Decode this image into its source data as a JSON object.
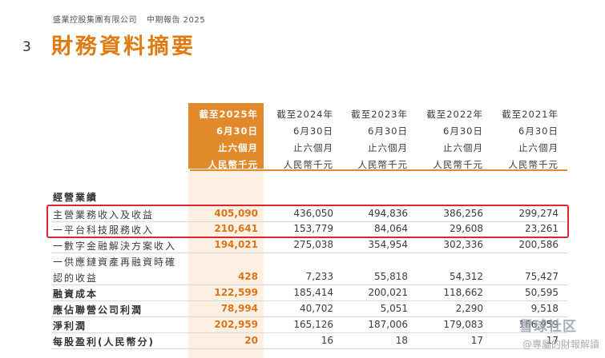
{
  "breadcrumb": {
    "company": "盛業控股集團有限公司",
    "report": "中期報告 2025"
  },
  "page_number": "3",
  "title": "財務資料摘要",
  "columns": [
    {
      "lines": [
        "截至2025年",
        "6月30日",
        "止六個月",
        "人民幣千元"
      ]
    },
    {
      "lines": [
        "截至2024年",
        "6月30日",
        "止六個月",
        "人民幣千元"
      ]
    },
    {
      "lines": [
        "截至2023年",
        "6月30日",
        "止六個月",
        "人民幣千元"
      ]
    },
    {
      "lines": [
        "截至2022年",
        "6月30日",
        "止六個月",
        "人民幣千元"
      ]
    },
    {
      "lines": [
        "截至2021年",
        "6月30日",
        "止六個月",
        "人民幣千元"
      ]
    }
  ],
  "section_title": "經營業績",
  "rows": [
    {
      "label": "主營業務收入及收益",
      "values": [
        "405,090",
        "436,050",
        "494,836",
        "386,256",
        "299,274"
      ]
    },
    {
      "label": "一平台科技服務收入",
      "values": [
        "210,641",
        "153,779",
        "84,064",
        "29,608",
        "23,261"
      ]
    },
    {
      "label": "一數字金融解決方案收入",
      "values": [
        "194,021",
        "275,038",
        "354,954",
        "302,336",
        "200,586"
      ]
    },
    {
      "label": "一供應鏈資產再融資時確",
      "values": [
        "",
        "",
        "",
        "",
        ""
      ]
    },
    {
      "label": "認的收益",
      "values": [
        "428",
        "7,233",
        "55,818",
        "54,312",
        "75,427"
      ]
    },
    {
      "label": "融資成本",
      "values": [
        "122,599",
        "185,414",
        "200,021",
        "118,662",
        "50,595"
      ]
    },
    {
      "label": "應佔聯營公司利潤",
      "values": [
        "78,994",
        "40,702",
        "5,051",
        "2,290",
        "9,518"
      ]
    },
    {
      "label": "淨利潤",
      "values": [
        "202,959",
        "165,126",
        "187,006",
        "179,083",
        "166,959"
      ]
    },
    {
      "label": "每股盈利(人民幣分)",
      "values": [
        "20",
        "16",
        "18",
        "17",
        "17"
      ]
    }
  ],
  "watermark": {
    "main": "雪球社区",
    "sub": "@專屬的財報解讀"
  },
  "colors": {
    "accent": "#e07b12",
    "highlight": "#e0252e"
  }
}
